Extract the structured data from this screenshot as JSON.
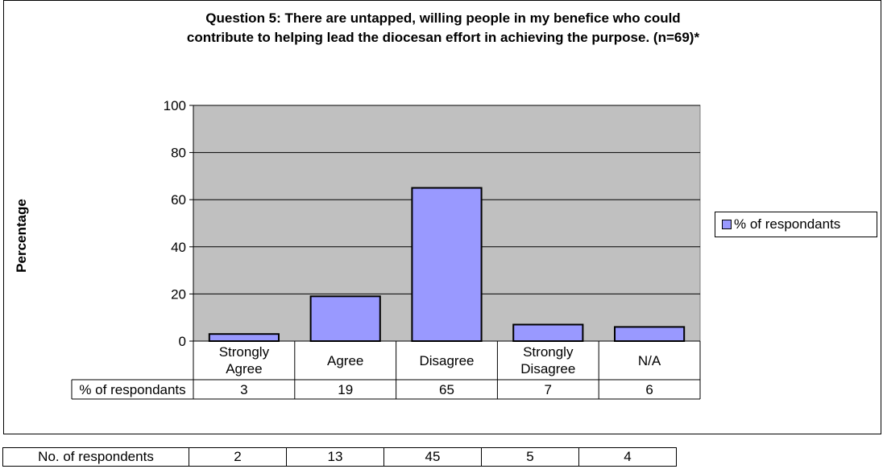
{
  "chart_data": {
    "type": "bar",
    "title_lines": [
      "Question 5: There are untapped, willing people in my benefice who could",
      "contribute to helping lead the diocesan effort in achieving the purpose. (n=69)*"
    ],
    "ylabel": "Percentage",
    "xlabel": "",
    "ylim": [
      0,
      100
    ],
    "yticks": [
      "0",
      "20",
      "40",
      "60",
      "80",
      "100"
    ],
    "categories": [
      "Strongly\nAgree",
      "Agree",
      "Disagree",
      "Strongly\nDisagree",
      "N/A"
    ],
    "series": [
      {
        "name": "% of respondants",
        "values": [
          3,
          19,
          65,
          7,
          6
        ]
      }
    ],
    "bar_color": "#9999ff",
    "plot_background": "#c0c0c0",
    "grid": true,
    "legend": "right",
    "data_table": {
      "row_label": "% of respondants",
      "values": [
        "3",
        "19",
        "65",
        "7",
        "6"
      ]
    }
  },
  "respondents_table": {
    "row_label": "No. of respondents",
    "values": [
      "2",
      "13",
      "45",
      "5",
      "4"
    ]
  }
}
